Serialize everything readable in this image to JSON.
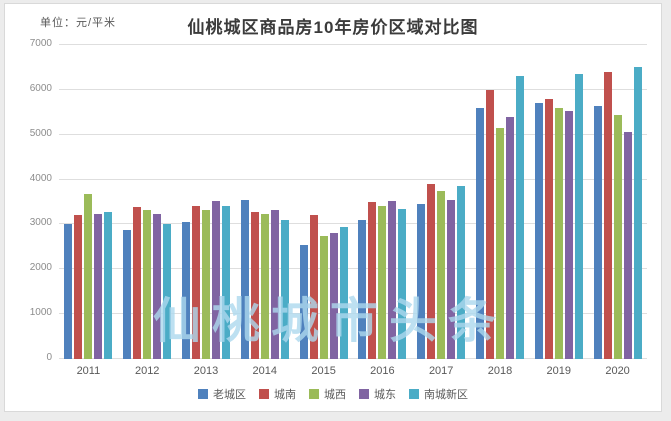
{
  "page": {
    "background_color": "#ececec"
  },
  "card": {
    "background_color": "#ffffff",
    "border_color": "#d9d9d9"
  },
  "chart": {
    "unit_label": "单位：元/平米",
    "title": "仙桃城区商品房10年房价区域对比图",
    "watermark": "仙桃城市头条"
  },
  "chart_data": {
    "type": "bar",
    "title": "仙桃城区商品房10年房价区域对比图",
    "unit": "元/平米",
    "categories": [
      "2011",
      "2012",
      "2013",
      "2014",
      "2015",
      "2016",
      "2017",
      "2018",
      "2019",
      "2020"
    ],
    "series": [
      {
        "name": "老城区",
        "color": "#4F81BD",
        "values": [
          3000,
          2870,
          3050,
          3550,
          2550,
          3100,
          3450,
          5600,
          5700,
          5650
        ]
      },
      {
        "name": "城南",
        "color": "#C0504D",
        "values": [
          3200,
          3400,
          3420,
          3280,
          3200,
          3500,
          3900,
          6000,
          5800,
          6400
        ]
      },
      {
        "name": "城西",
        "color": "#9BBB59",
        "values": [
          3670,
          3320,
          3330,
          3240,
          2750,
          3420,
          3750,
          5150,
          5600,
          5450
        ]
      },
      {
        "name": "城东",
        "color": "#8064A2",
        "values": [
          3230,
          3240,
          3520,
          3320,
          2800,
          3520,
          3550,
          5400,
          5520,
          5050
        ]
      },
      {
        "name": "南城新区",
        "color": "#4BACC6",
        "values": [
          3280,
          3000,
          3420,
          3100,
          2950,
          3340,
          3850,
          6300,
          6350,
          6500
        ]
      }
    ],
    "ylim": [
      0,
      7000
    ],
    "ytick_interval": 1000,
    "ytick_labels": [
      "0",
      "1000",
      "2000",
      "3000",
      "4000",
      "5000",
      "6000",
      "7000"
    ],
    "grid": true,
    "legend_position": "bottom",
    "watermark": "仙桃城市头条"
  }
}
